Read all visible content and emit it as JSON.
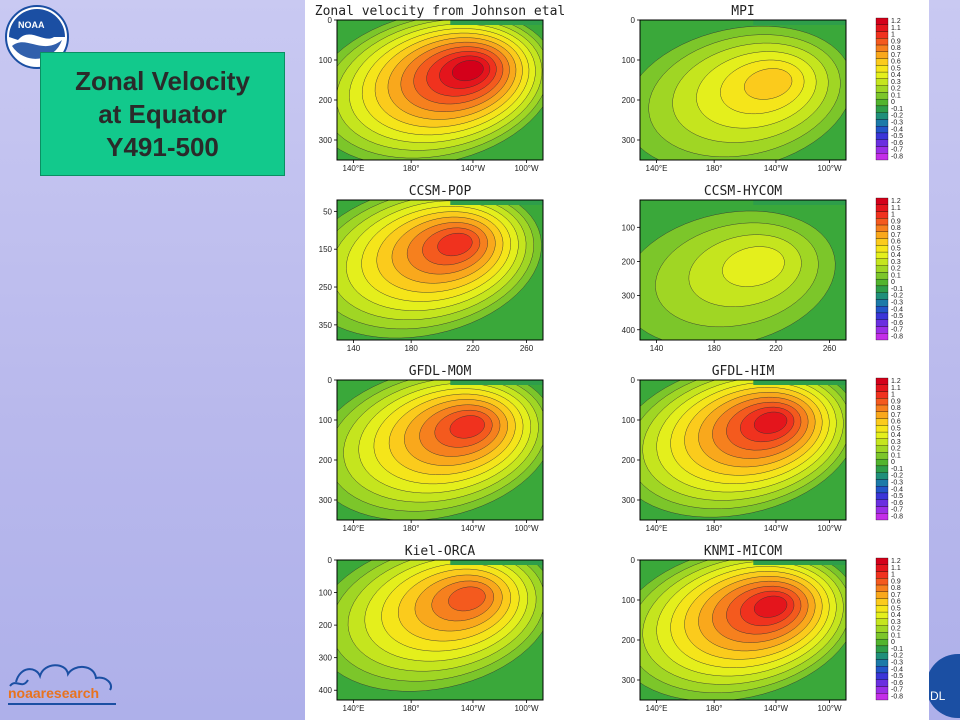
{
  "slide": {
    "title_lines": [
      "Zonal Velocity",
      "at Equator",
      "Y491-500"
    ],
    "noaa_logo_text": "NOAA",
    "research_logo_text": "noaaresearch",
    "gfdl_logo_text": "DL"
  },
  "colors": {
    "background": "#b8b8ec",
    "title_box": "#12c98c",
    "noaa_blue": "#1b4fa3",
    "research_orange": "#e8731e"
  },
  "chart_data": [
    {
      "type": "heatmap",
      "title": "Zonal velocity from Johnson etal",
      "x_ticks": [
        "140°E",
        "180°",
        "140°W",
        "100°W"
      ],
      "y_ticks": [
        "0",
        "100",
        "200",
        "300"
      ],
      "ylim": [
        350,
        0
      ],
      "core": {
        "x": "140°W",
        "depth": 120,
        "max": 1.2
      },
      "colorbar": false
    },
    {
      "type": "heatmap",
      "title": "MPI",
      "x_ticks": [
        "140°E",
        "180°",
        "140°W",
        "100°W"
      ],
      "y_ticks": [
        "0",
        "100",
        "200",
        "300"
      ],
      "ylim": [
        350,
        0
      ],
      "core": {
        "x": "140°W",
        "depth": 150,
        "max": 0.6
      },
      "colorbar": true
    },
    {
      "type": "heatmap",
      "title": "CCSM-POP",
      "x_ticks": [
        "140",
        "180",
        "220",
        "260"
      ],
      "y_ticks": [
        "50",
        "150",
        "250",
        "350"
      ],
      "ylim": [
        390,
        20
      ],
      "core": {
        "x": "230",
        "depth": 130,
        "max": 1.0
      },
      "colorbar": false
    },
    {
      "type": "heatmap",
      "title": "CCSM-HYCOM",
      "x_ticks": [
        "140",
        "180",
        "220",
        "260"
      ],
      "y_ticks": [
        "100",
        "200",
        "300",
        "400"
      ],
      "ylim": [
        430,
        20
      ],
      "core": {
        "x": "240",
        "depth": 200,
        "max": 0.4
      },
      "colorbar": true
    },
    {
      "type": "heatmap",
      "title": "GFDL-MOM",
      "x_ticks": [
        "140°E",
        "180°",
        "140°W",
        "100°W"
      ],
      "y_ticks": [
        "0",
        "100",
        "200",
        "300"
      ],
      "ylim": [
        350,
        0
      ],
      "core": {
        "x": "140°W",
        "depth": 110,
        "max": 1.0
      },
      "colorbar": false
    },
    {
      "type": "heatmap",
      "title": "GFDL-HIM",
      "x_ticks": [
        "140°E",
        "180°",
        "140°W",
        "100°W"
      ],
      "y_ticks": [
        "0",
        "100",
        "200",
        "300"
      ],
      "ylim": [
        350,
        0
      ],
      "core": {
        "x": "140°W",
        "depth": 100,
        "max": 1.1
      },
      "colorbar": true
    },
    {
      "type": "heatmap",
      "title": "Kiel-ORCA",
      "x_ticks": [
        "140°E",
        "180°",
        "140°W",
        "100°W"
      ],
      "y_ticks": [
        "0",
        "100",
        "200",
        "300",
        "400"
      ],
      "ylim": [
        430,
        0
      ],
      "core": {
        "x": "140°W",
        "depth": 110,
        "max": 0.9
      },
      "colorbar": false
    },
    {
      "type": "heatmap",
      "title": "KNMI-MICOM",
      "x_ticks": [
        "140°E",
        "180°",
        "140°W",
        "100°W"
      ],
      "y_ticks": [
        "0",
        "100",
        "200",
        "300"
      ],
      "ylim": [
        350,
        0
      ],
      "core": {
        "x": "140°W",
        "depth": 110,
        "max": 1.1
      },
      "colorbar": true
    }
  ],
  "colorbar": {
    "labels": [
      "1.2",
      "1.1",
      "1",
      "0.9",
      "0.8",
      "0.7",
      "0.6",
      "0.5",
      "0.4",
      "0.3",
      "0.2",
      "0.1",
      "0",
      "-0.1",
      "-0.2",
      "-0.3",
      "-0.4",
      "-0.5",
      "-0.6",
      "-0.7",
      "-0.8"
    ],
    "colors": [
      "#d4001a",
      "#e4151c",
      "#f0321e",
      "#f45a1e",
      "#f6801e",
      "#f9a81c",
      "#fbcb1c",
      "#f5e51a",
      "#e4ef1c",
      "#c5e51e",
      "#a0d624",
      "#7cc62a",
      "#52b42e",
      "#2e9e4a",
      "#1f8f7a",
      "#1b7aa8",
      "#2255c8",
      "#3b36d8",
      "#6a2fe0",
      "#9a2ee6",
      "#c42ee8"
    ]
  }
}
